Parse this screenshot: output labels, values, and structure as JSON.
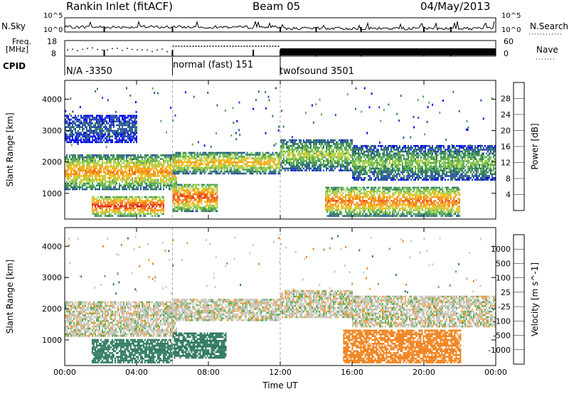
{
  "header": {
    "station": "Rankin Inlet (fitACF)",
    "beam": "Beam 05",
    "date": "04/May/2013"
  },
  "noise_panel": {
    "left_label": "N.Sky",
    "right_label": "N.Search",
    "left_ticks": [
      "10^5",
      "10^0"
    ],
    "right_ticks": [
      "10^5",
      "10^0"
    ]
  },
  "freq_panel": {
    "left_label_line1": "Freq.",
    "left_label_line2": "[MHz]",
    "right_label": "Nave",
    "left_ticks": [
      "18",
      "8"
    ],
    "right_ticks": [
      "60",
      "0"
    ]
  },
  "cpid": {
    "label": "CPID",
    "modes": [
      {
        "name": "N/A -3350",
        "start_h": 0,
        "end_h": 6
      },
      {
        "name": "normal (fast) 151",
        "start_h": 6,
        "end_h": 12
      },
      {
        "name": "twofsound 3501",
        "start_h": 12,
        "end_h": 24
      }
    ]
  },
  "chart_data": [
    {
      "type": "heatmap",
      "title": "Power",
      "ylabel": "Slant Range [km]",
      "xlabel": "Time UT",
      "xlim": [
        0,
        24
      ],
      "ylim": [
        180,
        4600
      ],
      "x_ticks": [
        "00:00",
        "04:00",
        "08:00",
        "12:00",
        "16:00",
        "20:00",
        "00:00"
      ],
      "y_ticks": [
        1000,
        2000,
        3000,
        4000
      ],
      "colorbar": {
        "label": "Power [dB]",
        "ticks": [
          4,
          8,
          12,
          16,
          20,
          24,
          28
        ],
        "range": [
          0,
          32
        ],
        "colors": [
          "#0000ff",
          "#2848b4",
          "#2f7a5e",
          "#5aae54",
          "#a8d24a",
          "#f0c020",
          "#f89a18",
          "#f06e14",
          "#e83c10",
          "#e00000"
        ]
      },
      "regions": [
        {
          "t0": 0.0,
          "t1": 6.2,
          "r0": 1100,
          "r1": 2200,
          "value": 20
        },
        {
          "t0": 1.5,
          "t1": 5.5,
          "r0": 250,
          "r1": 900,
          "value": 26
        },
        {
          "t0": 6.0,
          "t1": 8.5,
          "r0": 400,
          "r1": 1300,
          "value": 24
        },
        {
          "t0": 6.0,
          "t1": 12.0,
          "r0": 1600,
          "r1": 2300,
          "value": 18
        },
        {
          "t0": 12.0,
          "t1": 16.0,
          "r0": 1700,
          "r1": 2700,
          "value": 14
        },
        {
          "t0": 14.5,
          "t1": 22.0,
          "r0": 250,
          "r1": 1200,
          "value": 22
        },
        {
          "t0": 16.0,
          "t1": 24.0,
          "r0": 1400,
          "r1": 2500,
          "value": 12
        },
        {
          "t0": 0.0,
          "t1": 4.0,
          "r0": 2600,
          "r1": 3500,
          "value": 6
        }
      ]
    },
    {
      "type": "heatmap",
      "title": "Velocity",
      "ylabel": "Slant Range [km]",
      "xlabel": "Time UT",
      "xlim": [
        0,
        24
      ],
      "ylim": [
        180,
        4600
      ],
      "x_ticks": [
        "00:00",
        "04:00",
        "08:00",
        "12:00",
        "16:00",
        "20:00",
        "00:00"
      ],
      "y_ticks": [
        1000,
        2000,
        3000,
        4000
      ],
      "colorbar": {
        "label": "Velocity [m s^-1]",
        "ticks": [
          1000,
          500,
          100,
          25,
          -25,
          -100,
          -500,
          -1000
        ],
        "colors": [
          "#2848b4",
          "#2f7a5e",
          "#2f7a5e",
          "#5aae54",
          "#c8c8c0",
          "#f0a040",
          "#f08018",
          "#f05010",
          "#e00000"
        ]
      },
      "regions": [
        {
          "t0": 0.0,
          "t1": 6.2,
          "r0": 1100,
          "r1": 2200,
          "value": 0
        },
        {
          "t0": 1.5,
          "t1": 6.0,
          "r0": 250,
          "r1": 1000,
          "value": 200
        },
        {
          "t0": 6.0,
          "t1": 9.0,
          "r0": 400,
          "r1": 1200,
          "value": 300
        },
        {
          "t0": 6.0,
          "t1": 12.0,
          "r0": 1600,
          "r1": 2300,
          "value": 0
        },
        {
          "t0": 12.0,
          "t1": 16.0,
          "r0": 1700,
          "r1": 2600,
          "value": 0
        },
        {
          "t0": 15.5,
          "t1": 22.0,
          "r0": 250,
          "r1": 1300,
          "value": -400
        },
        {
          "t0": 16.0,
          "t1": 24.0,
          "r0": 1400,
          "r1": 2400,
          "value": 0
        }
      ]
    }
  ]
}
